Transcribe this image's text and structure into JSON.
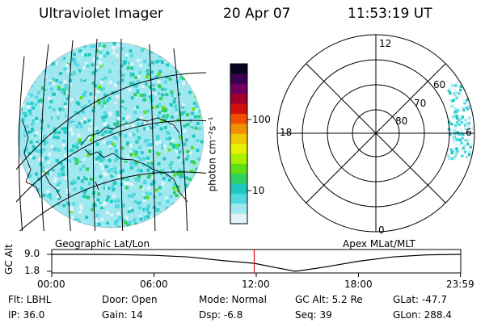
{
  "header": {
    "title": "Ultraviolet Imager",
    "date": "20 Apr 07",
    "time": "11:53:19 UT"
  },
  "colorbar": {
    "label": "photon cm⁻²s⁻¹",
    "ticks": [
      "100",
      "10"
    ],
    "colors": [
      "#050520",
      "#3a0050",
      "#700060",
      "#a00030",
      "#d01010",
      "#f05000",
      "#f09000",
      "#f0c800",
      "#e8f000",
      "#a8f000",
      "#60e010",
      "#30d060",
      "#20c8c0",
      "#50d8e0",
      "#a0e8f0",
      "#e0f4f8"
    ]
  },
  "panels": {
    "left_label": "Geographic Lat/Lon",
    "right_label": "Apex  MLat/MLT"
  },
  "polar": {
    "mlt_labels": {
      "top": "12",
      "left": "18",
      "right": "6",
      "bottom": "0"
    },
    "lat_labels": [
      "60",
      "70",
      "80"
    ]
  },
  "chart_data": {
    "type": "line",
    "ylabel": "GC Alt",
    "yticks": [
      "9.0",
      "1.8"
    ],
    "xticks": [
      "00:00",
      "06:00",
      "12:00",
      "18:00",
      "23:59"
    ],
    "marker_time": "11:53",
    "series": [
      {
        "x_hours": [
          0,
          2,
          4,
          6,
          8,
          10,
          11.9,
          13,
          14.3,
          16,
          18,
          20,
          22,
          24
        ],
        "values": [
          9.0,
          9.0,
          8.9,
          8.6,
          7.9,
          6.4,
          5.2,
          3.6,
          1.8,
          3.6,
          6.1,
          7.9,
          8.8,
          9.0
        ]
      }
    ]
  },
  "info": {
    "flt": "Flt: LBHL",
    "ip": "IP: 36.0",
    "door": "Door: Open",
    "gain": "Gain: 14",
    "mode": "Mode: Normal",
    "dsp": "Dsp:    -6.8",
    "gcalt": "GC Alt: 5.2 Re",
    "seq": "Seq: 39",
    "glat": "GLat: -47.7",
    "glon": "GLon: 288.4"
  }
}
